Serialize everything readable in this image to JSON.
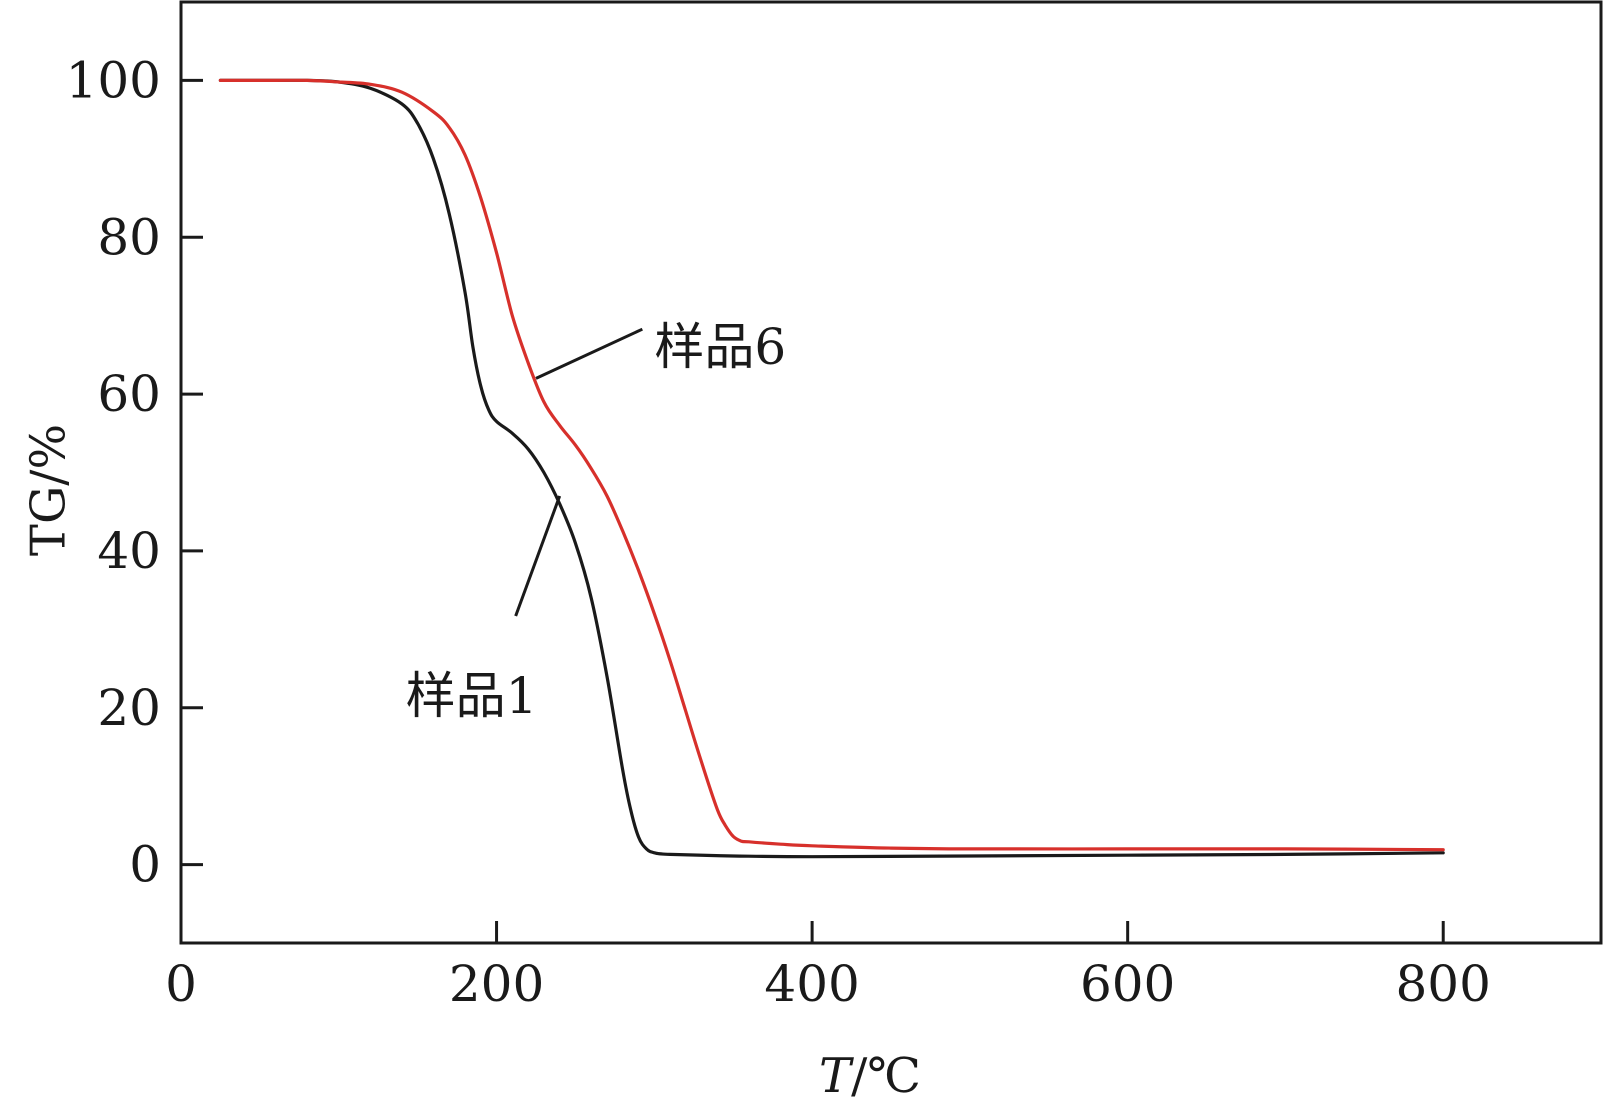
{
  "chart_data": {
    "type": "line",
    "xlabel_italic": "T",
    "xlabel_unit": "/℃",
    "ylabel": "TG/%",
    "xlim": [
      0,
      900
    ],
    "ylim": [
      -10,
      110
    ],
    "xticks": [
      0,
      200,
      400,
      600,
      800
    ],
    "yticks": [
      0,
      20,
      40,
      60,
      80,
      100
    ],
    "grid": false,
    "legend": "none",
    "series": [
      {
        "name": "样品1",
        "color": "#1a1a1a",
        "x": [
          25,
          50,
          80,
          100,
          120,
          140,
          150,
          160,
          170,
          180,
          185,
          190,
          195,
          200,
          210,
          220,
          230,
          240,
          250,
          260,
          270,
          280,
          285,
          290,
          295,
          300,
          310,
          350,
          400,
          500,
          600,
          700,
          800
        ],
        "y": [
          100,
          100,
          100,
          99.8,
          99,
          97,
          94.5,
          90,
          83,
          73,
          66,
          61,
          58,
          56.5,
          55,
          53,
          50,
          46,
          41,
          34,
          24,
          12,
          7,
          3.5,
          2,
          1.5,
          1.3,
          1.1,
          1.0,
          1.1,
          1.2,
          1.3,
          1.5
        ]
      },
      {
        "name": "样品6",
        "color": "#d7302b",
        "x": [
          25,
          50,
          80,
          100,
          120,
          140,
          160,
          170,
          180,
          190,
          200,
          210,
          220,
          230,
          240,
          250,
          260,
          270,
          280,
          290,
          300,
          310,
          320,
          330,
          340,
          345,
          350,
          355,
          360,
          380,
          400,
          450,
          500,
          600,
          700,
          800
        ],
        "y": [
          100,
          100,
          100,
          99.8,
          99.5,
          98.5,
          96,
          94,
          90.5,
          85,
          78,
          70,
          64,
          59,
          56,
          53.5,
          50.5,
          47,
          42.5,
          37.5,
          32,
          26,
          19.5,
          13,
          7,
          5,
          3.6,
          3.0,
          2.9,
          2.6,
          2.4,
          2.1,
          2.0,
          2.0,
          2.0,
          1.9
        ]
      }
    ],
    "annotations": [
      {
        "text": "样品6",
        "series": 1,
        "point": [
          225,
          62
        ],
        "label_at": [
          300,
          67
        ]
      },
      {
        "text": "样品1",
        "series": 0,
        "point": [
          240,
          47
        ],
        "label_at": [
          205,
          23
        ]
      }
    ]
  }
}
